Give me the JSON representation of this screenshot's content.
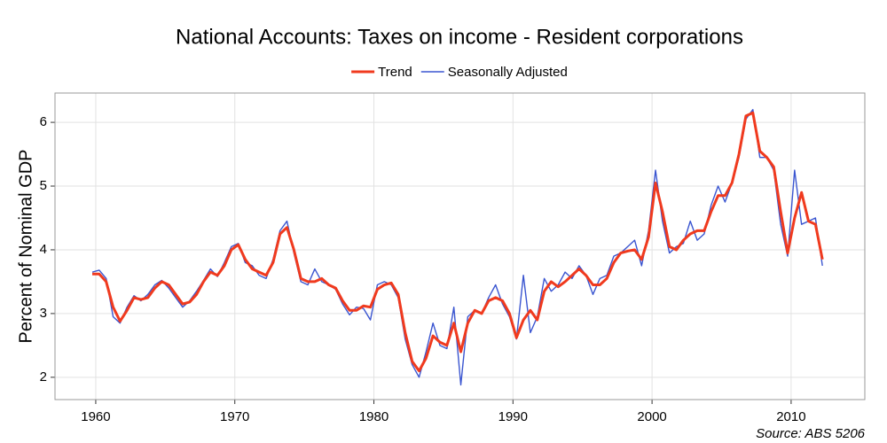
{
  "chart_data": {
    "type": "line",
    "title": "National Accounts: Taxes on income - Resident corporations",
    "ylabel": "Percent of Nominal GDP",
    "source": "Source: ABS 5206",
    "legend": "top",
    "grid": true,
    "xlim": [
      1957.07,
      2015.3
    ],
    "ylim": [
      1.65,
      6.46
    ],
    "xticks": [
      1960,
      1970,
      1980,
      1990,
      2000,
      2010
    ],
    "yticks": [
      2,
      3,
      4,
      5,
      6
    ],
    "x": [
      1959.75,
      1960.25,
      1960.75,
      1961.25,
      1961.75,
      1962.25,
      1962.75,
      1963.25,
      1963.75,
      1964.25,
      1964.75,
      1965.25,
      1965.75,
      1966.25,
      1966.75,
      1967.25,
      1967.75,
      1968.25,
      1968.75,
      1969.25,
      1969.75,
      1970.25,
      1970.75,
      1971.25,
      1971.75,
      1972.25,
      1972.75,
      1973.25,
      1973.75,
      1974.25,
      1974.75,
      1975.25,
      1975.75,
      1976.25,
      1976.75,
      1977.25,
      1977.75,
      1978.25,
      1978.75,
      1979.25,
      1979.75,
      1980.25,
      1980.75,
      1981.25,
      1981.75,
      1982.25,
      1982.75,
      1983.25,
      1983.75,
      1984.25,
      1984.75,
      1985.25,
      1985.75,
      1986.25,
      1986.75,
      1987.25,
      1987.75,
      1988.25,
      1988.75,
      1989.25,
      1989.75,
      1990.25,
      1990.75,
      1991.25,
      1991.75,
      1992.25,
      1992.75,
      1993.25,
      1993.75,
      1994.25,
      1994.75,
      1995.25,
      1995.75,
      1996.25,
      1996.75,
      1997.25,
      1997.75,
      1998.25,
      1998.75,
      1999.25,
      1999.75,
      2000.25,
      2000.75,
      2001.25,
      2001.75,
      2002.25,
      2002.75,
      2003.25,
      2003.75,
      2004.25,
      2004.75,
      2005.25,
      2005.75,
      2006.25,
      2006.75,
      2007.25,
      2007.75,
      2008.25,
      2008.75,
      2009.25,
      2009.75,
      2010.25,
      2010.75,
      2011.25,
      2011.75,
      2012.25
    ],
    "series": [
      {
        "name": "Trend",
        "color": "#f03a1e",
        "width": 3,
        "values": [
          3.62,
          3.62,
          3.5,
          3.1,
          2.88,
          3.05,
          3.25,
          3.22,
          3.25,
          3.4,
          3.5,
          3.45,
          3.3,
          3.15,
          3.18,
          3.3,
          3.5,
          3.65,
          3.6,
          3.75,
          4.0,
          4.08,
          3.85,
          3.7,
          3.65,
          3.6,
          3.8,
          4.25,
          4.35,
          4.0,
          3.55,
          3.5,
          3.5,
          3.55,
          3.45,
          3.4,
          3.2,
          3.05,
          3.05,
          3.12,
          3.1,
          3.38,
          3.45,
          3.48,
          3.3,
          2.7,
          2.25,
          2.1,
          2.3,
          2.65,
          2.55,
          2.5,
          2.85,
          2.4,
          2.85,
          3.05,
          3.0,
          3.2,
          3.25,
          3.2,
          3.0,
          2.62,
          2.9,
          3.05,
          2.9,
          3.35,
          3.5,
          3.42,
          3.5,
          3.6,
          3.7,
          3.6,
          3.45,
          3.45,
          3.55,
          3.8,
          3.95,
          3.98,
          4.0,
          3.85,
          4.2,
          5.05,
          4.6,
          4.05,
          4.0,
          4.15,
          4.25,
          4.3,
          4.3,
          4.6,
          4.85,
          4.85,
          5.05,
          5.5,
          6.1,
          6.15,
          5.55,
          5.45,
          5.3,
          4.6,
          3.95,
          4.5,
          4.9,
          4.45,
          4.4,
          3.85
        ]
      },
      {
        "name": "Seasonally Adjusted",
        "color": "#3a55d0",
        "width": 1.4,
        "values": [
          3.65,
          3.68,
          3.55,
          2.95,
          2.85,
          3.1,
          3.28,
          3.2,
          3.3,
          3.45,
          3.52,
          3.4,
          3.25,
          3.1,
          3.2,
          3.35,
          3.52,
          3.7,
          3.58,
          3.8,
          4.05,
          4.1,
          3.8,
          3.75,
          3.6,
          3.55,
          3.85,
          4.3,
          4.45,
          3.95,
          3.5,
          3.45,
          3.7,
          3.5,
          3.45,
          3.38,
          3.15,
          2.98,
          3.1,
          3.08,
          2.9,
          3.45,
          3.5,
          3.45,
          3.25,
          2.6,
          2.2,
          2.0,
          2.4,
          2.85,
          2.5,
          2.45,
          3.1,
          1.88,
          2.95,
          3.05,
          3.0,
          3.25,
          3.45,
          3.15,
          2.95,
          2.6,
          3.6,
          2.7,
          2.95,
          3.55,
          3.35,
          3.45,
          3.65,
          3.55,
          3.75,
          3.6,
          3.3,
          3.55,
          3.6,
          3.9,
          3.95,
          4.05,
          4.15,
          3.75,
          4.3,
          5.25,
          4.45,
          3.95,
          4.05,
          4.1,
          4.45,
          4.15,
          4.25,
          4.7,
          5.0,
          4.75,
          5.05,
          5.45,
          6.05,
          6.2,
          5.45,
          5.45,
          5.25,
          4.4,
          3.9,
          5.25,
          4.4,
          4.45,
          4.5,
          3.75
        ]
      }
    ]
  }
}
